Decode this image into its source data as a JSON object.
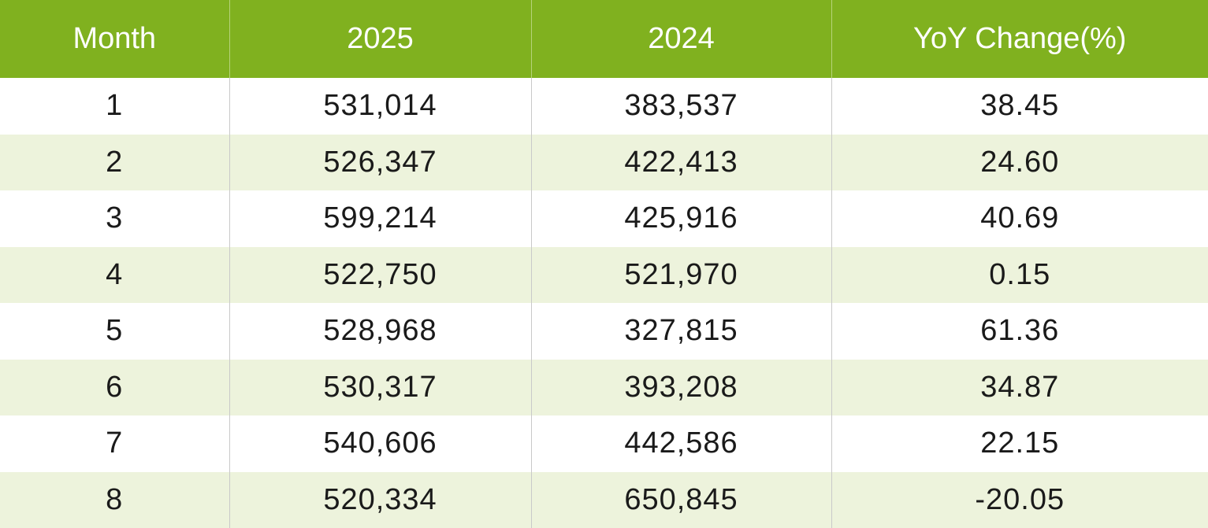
{
  "colors": {
    "header_bg": "#80b11f",
    "header_text": "#ffffff",
    "row_alt_bg": "#edf3dc",
    "row_bg": "#ffffff"
  },
  "chart_data": {
    "type": "table",
    "columns": [
      "Month",
      "2025",
      "2024",
      "YoY Change(%)"
    ],
    "rows": [
      [
        "1",
        "531,014",
        "383,537",
        "38.45"
      ],
      [
        "2",
        "526,347",
        "422,413",
        "24.60"
      ],
      [
        "3",
        "599,214",
        "425,916",
        "40.69"
      ],
      [
        "4",
        "522,750",
        "521,970",
        "0.15"
      ],
      [
        "5",
        "528,968",
        "327,815",
        "61.36"
      ],
      [
        "6",
        "530,317",
        "393,208",
        "34.87"
      ],
      [
        "7",
        "540,606",
        "442,586",
        "22.15"
      ],
      [
        "8",
        "520,334",
        "650,845",
        "-20.05"
      ]
    ]
  }
}
